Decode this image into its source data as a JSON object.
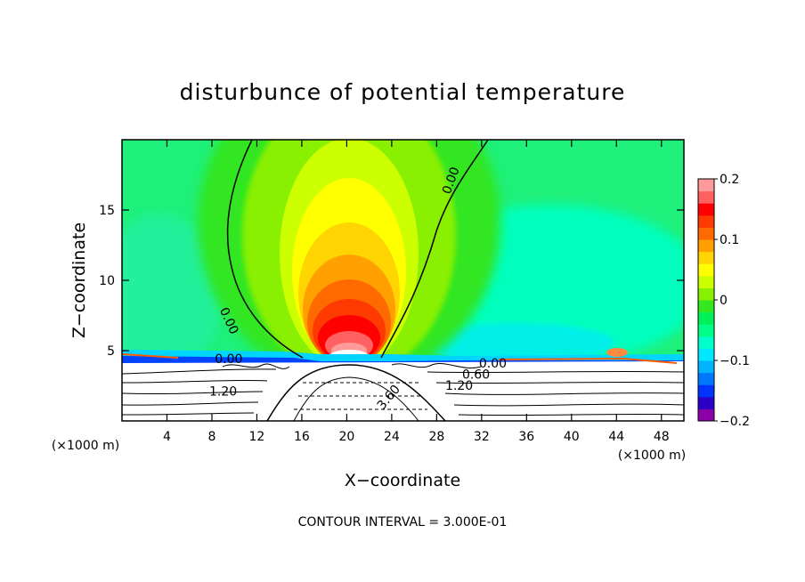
{
  "chart_data": {
    "type": "heatmap",
    "title": "disturbunce of potential temperature",
    "xlabel": "X−coordinate",
    "ylabel": "Z−coordinate",
    "x_unit": "(×1000 m)",
    "z_unit": "(×1000 m)",
    "xlim": [
      0,
      50
    ],
    "ylim": [
      0,
      20
    ],
    "x_ticks": [
      4,
      8,
      12,
      16,
      20,
      24,
      28,
      32,
      36,
      40,
      44,
      48
    ],
    "x_tick_labels": [
      "4",
      "8",
      "12",
      "16",
      "20",
      "24",
      "28",
      "32",
      "36",
      "40",
      "44",
      "48"
    ],
    "y_ticks": [
      5,
      10,
      15
    ],
    "y_tick_labels": [
      "5",
      "10",
      "15"
    ],
    "colorbar": {
      "min": -0.2,
      "max": 0.2,
      "levels": [
        -0.2,
        -0.175,
        -0.15,
        -0.125,
        -0.1,
        -0.075,
        -0.05,
        -0.025,
        0,
        0.025,
        0.05,
        0.075,
        0.1,
        0.125,
        0.15,
        0.175,
        0.2
      ],
      "colors": [
        "#8b00a8",
        "#2a00c8",
        "#0033ff",
        "#0077ff",
        "#00b4ff",
        "#00e8ff",
        "#00ffcc",
        "#00ff88",
        "#00f05a",
        "#33e81e",
        "#88f000",
        "#ccff00",
        "#ffff00",
        "#ffd400",
        "#ffa000",
        "#ff6a00",
        "#ff3a00",
        "#ff0000",
        "#ff6060",
        "#ff9a9a"
      ],
      "tick_values": [
        0.2,
        0.1,
        0,
        -0.1,
        -0.2
      ],
      "tick_labels": [
        "0.2",
        "0.1",
        "0",
        "−0.1",
        "−0.2"
      ]
    },
    "contour_labels": [
      {
        "text": "0.00",
        "x": 9.2,
        "z": 7.0,
        "rot": 65
      },
      {
        "text": "0.00",
        "x": 29.6,
        "z": 17.0,
        "rot": -70
      },
      {
        "text": "0.00",
        "x": 9.5,
        "z": 4.1,
        "rot": 0
      },
      {
        "text": "0.00",
        "x": 33.0,
        "z": 3.8,
        "rot": 0
      },
      {
        "text": "0.60",
        "x": 31.5,
        "z": 3.0,
        "rot": 0
      },
      {
        "text": "1.20",
        "x": 30.0,
        "z": 2.2,
        "rot": 0
      },
      {
        "text": "1.20",
        "x": 9.0,
        "z": 1.8,
        "rot": 0
      },
      {
        "text": "3.60",
        "x": 24.0,
        "z": 1.5,
        "rot": -50
      }
    ],
    "contour_interval": "CONTOUR INTERVAL = 3.000E-01",
    "grid": false,
    "legend": "right"
  }
}
